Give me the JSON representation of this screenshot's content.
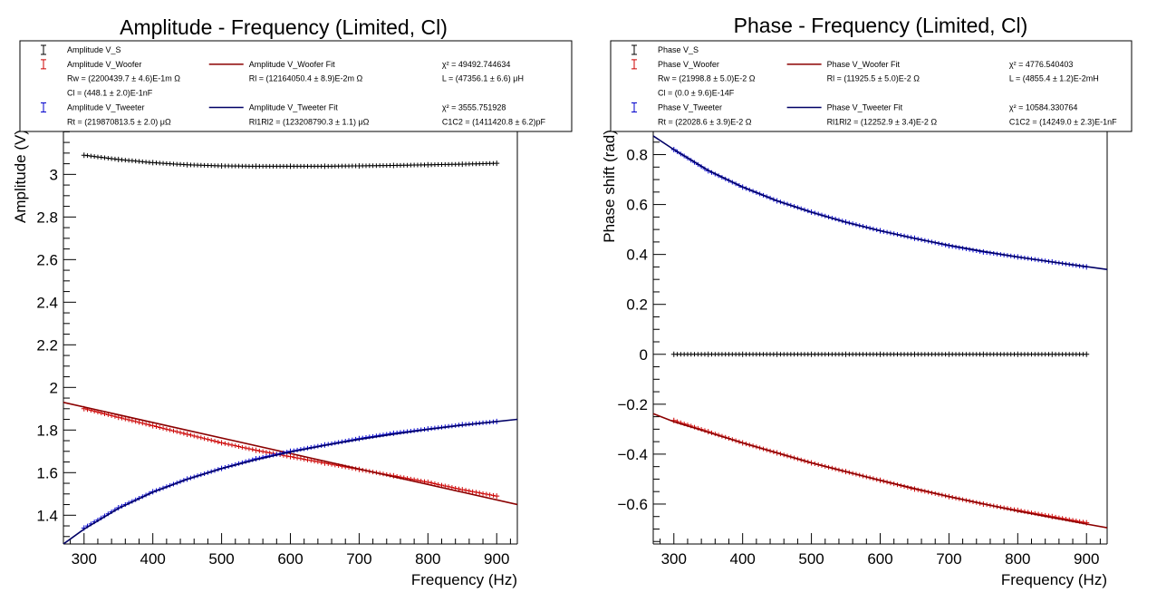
{
  "chart_data": [
    {
      "type": "scatter",
      "title": "Amplitude - Frequency (Limited, Cl)",
      "xlabel": "Frequency (Hz)",
      "ylabel": "Amplitude (V)",
      "xlim": [
        270,
        930
      ],
      "ylim": [
        1.265,
        3.21
      ],
      "xticks": [
        300,
        400,
        500,
        600,
        700,
        800,
        900
      ],
      "yticks": [
        1.4,
        1.6,
        1.8,
        2,
        2.2,
        2.4,
        2.6,
        2.8,
        3
      ],
      "ytick_labels": [
        "1.4",
        "1.6",
        "1.8",
        "2",
        "2.2",
        "2.4",
        "2.6",
        "2.8",
        "3"
      ],
      "xtick_labels": [
        "300",
        "400",
        "500",
        "600",
        "700",
        "800",
        "900"
      ],
      "series": [
        {
          "name": "Amplitude V_S",
          "color": "#000000",
          "kind": "points",
          "x": [
            300,
            350,
            400,
            450,
            500,
            550,
            600,
            650,
            700,
            750,
            800,
            850,
            900
          ],
          "y": [
            3.09,
            3.07,
            3.055,
            3.045,
            3.04,
            3.038,
            3.038,
            3.038,
            3.04,
            3.042,
            3.045,
            3.048,
            3.052
          ]
        },
        {
          "name": "Amplitude V_Woofer",
          "color": "#cc0000",
          "kind": "points",
          "x": [
            300,
            350,
            400,
            450,
            500,
            550,
            600,
            650,
            700,
            750,
            800,
            850,
            900
          ],
          "y": [
            1.9,
            1.86,
            1.82,
            1.78,
            1.74,
            1.705,
            1.675,
            1.645,
            1.615,
            1.585,
            1.555,
            1.52,
            1.49
          ]
        },
        {
          "name": "Amplitude V_Woofer Fit",
          "color": "#8b0000",
          "kind": "line",
          "x": [
            270,
            930
          ],
          "y": [
            1.93,
            1.45
          ]
        },
        {
          "name": "Amplitude V_Tweeter",
          "color": "#0000cc",
          "kind": "points",
          "x": [
            300,
            350,
            400,
            450,
            500,
            550,
            600,
            650,
            700,
            750,
            800,
            850,
            900
          ],
          "y": [
            1.34,
            1.435,
            1.51,
            1.57,
            1.62,
            1.665,
            1.7,
            1.73,
            1.76,
            1.785,
            1.805,
            1.825,
            1.84
          ]
        },
        {
          "name": "Amplitude V_Tweeter Fit",
          "color": "#000066",
          "kind": "line",
          "x": [
            270,
            300,
            350,
            400,
            450,
            500,
            550,
            600,
            650,
            700,
            750,
            800,
            850,
            900,
            930
          ],
          "y": [
            1.265,
            1.335,
            1.432,
            1.508,
            1.569,
            1.619,
            1.661,
            1.697,
            1.728,
            1.756,
            1.781,
            1.803,
            1.823,
            1.84,
            1.85
          ]
        }
      ],
      "legend": {
        "placement": "top",
        "rows": [
          [
            {
              "marker": "errbar",
              "color": "#000000",
              "text": "Amplitude V_S"
            }
          ],
          [
            {
              "marker": "errbar",
              "color": "#cc0000",
              "text": "Amplitude V_Woofer"
            },
            {
              "marker": "line",
              "color": "#8b0000",
              "text": "Amplitude V_Woofer Fit"
            },
            {
              "marker": "none",
              "text": "χ² = 49492.744634"
            }
          ],
          [
            {
              "marker": "none",
              "text": "Rw = (2200439.7     ± 4.6)E-1m  Ω"
            },
            {
              "marker": "none",
              "text": "Rl = (12164050.4     ± 8.9)E-2m  Ω"
            },
            {
              "marker": "none",
              "text": "L = (47356.1     ± 6.6) μH"
            }
          ],
          [
            {
              "marker": "none",
              "text": "Cl = (448.1     ± 2.0)E-1nF"
            }
          ],
          [
            {
              "marker": "errbar",
              "color": "#0000cc",
              "text": "Amplitude V_Tweeter"
            },
            {
              "marker": "line",
              "color": "#000066",
              "text": "Amplitude V_Tweeter Fit"
            },
            {
              "marker": "none",
              "text": "χ² = 3555.751928"
            }
          ],
          [
            {
              "marker": "none",
              "text": "Rt = (219870813.5     ± 2.0) μΩ"
            },
            {
              "marker": "none",
              "text": "Rl1Rl2 = (123208790.3     ± 1.1) μΩ"
            },
            {
              "marker": "none",
              "text": "C1C2 = (1411420.8     ± 6.2)pF"
            }
          ]
        ]
      }
    },
    {
      "type": "scatter",
      "title": "Phase - Frequency (Limited, Cl)",
      "xlabel": "Frequency (Hz)",
      "ylabel": "Phase shift (rad)",
      "xlim": [
        270,
        930
      ],
      "ylim": [
        -0.76,
        0.9
      ],
      "xticks": [
        300,
        400,
        500,
        600,
        700,
        800,
        900
      ],
      "yticks": [
        -0.6,
        -0.4,
        -0.2,
        0,
        0.2,
        0.4,
        0.6,
        0.8
      ],
      "ytick_labels": [
        "−0.6",
        "−0.4",
        "−0.2",
        "0",
        "0.2",
        "0.4",
        "0.6",
        "0.8"
      ],
      "xtick_labels": [
        "300",
        "400",
        "500",
        "600",
        "700",
        "800",
        "900"
      ],
      "series": [
        {
          "name": "Phase V_S",
          "color": "#000000",
          "kind": "points",
          "x": [
            300,
            350,
            400,
            450,
            500,
            550,
            600,
            650,
            700,
            750,
            800,
            850,
            900
          ],
          "y": [
            0,
            0,
            0,
            0,
            0,
            0,
            0,
            0,
            0,
            0,
            0,
            0,
            0
          ]
        },
        {
          "name": "Phase V_Woofer",
          "color": "#cc0000",
          "kind": "points",
          "x": [
            300,
            350,
            400,
            450,
            500,
            550,
            600,
            650,
            700,
            750,
            800,
            850,
            900
          ],
          "y": [
            -0.265,
            -0.31,
            -0.355,
            -0.395,
            -0.435,
            -0.47,
            -0.505,
            -0.54,
            -0.57,
            -0.6,
            -0.625,
            -0.65,
            -0.675
          ]
        },
        {
          "name": "Phase V_Woofer Fit",
          "color": "#8b0000",
          "kind": "line",
          "x": [
            270,
            300,
            400,
            500,
            600,
            700,
            800,
            900,
            930
          ],
          "y": [
            -0.238,
            -0.27,
            -0.355,
            -0.435,
            -0.505,
            -0.57,
            -0.628,
            -0.68,
            -0.695
          ]
        },
        {
          "name": "Phase V_Tweeter",
          "color": "#0000cc",
          "kind": "points",
          "x": [
            300,
            350,
            400,
            450,
            500,
            550,
            600,
            650,
            700,
            750,
            800,
            850,
            900
          ],
          "y": [
            0.82,
            0.735,
            0.67,
            0.615,
            0.57,
            0.53,
            0.495,
            0.465,
            0.435,
            0.41,
            0.39,
            0.37,
            0.35
          ]
        },
        {
          "name": "Phase V_Tweeter Fit",
          "color": "#000066",
          "kind": "line",
          "x": [
            270,
            300,
            350,
            400,
            450,
            500,
            550,
            600,
            650,
            700,
            750,
            800,
            850,
            900,
            930
          ],
          "y": [
            0.875,
            0.82,
            0.737,
            0.67,
            0.615,
            0.569,
            0.529,
            0.495,
            0.464,
            0.437,
            0.412,
            0.39,
            0.37,
            0.351,
            0.34
          ]
        }
      ],
      "legend": {
        "placement": "top",
        "rows": [
          [
            {
              "marker": "errbar",
              "color": "#000000",
              "text": "Phase V_S"
            }
          ],
          [
            {
              "marker": "errbar",
              "color": "#cc0000",
              "text": "Phase V_Woofer"
            },
            {
              "marker": "line",
              "color": "#8b0000",
              "text": "Phase V_Woofer Fit"
            },
            {
              "marker": "none",
              "text": "χ² = 4776.540403"
            }
          ],
          [
            {
              "marker": "none",
              "text": "Rw = (21998.8     ± 5.0)E-2  Ω"
            },
            {
              "marker": "none",
              "text": "Rl = (11925.5     ± 5.0)E-2  Ω"
            },
            {
              "marker": "none",
              "text": "L = (4855.4     ± 1.2)E-2mH"
            }
          ],
          [
            {
              "marker": "none",
              "text": "Cl = (0.0     ± 9.6)E-14F"
            }
          ],
          [
            {
              "marker": "errbar",
              "color": "#0000cc",
              "text": "Phase V_Tweeter"
            },
            {
              "marker": "line",
              "color": "#000066",
              "text": "Phase V_Tweeter Fit"
            },
            {
              "marker": "none",
              "text": "χ² = 10584.330764"
            }
          ],
          [
            {
              "marker": "none",
              "text": "Rt = (22028.6     ± 3.9)E-2  Ω"
            },
            {
              "marker": "none",
              "text": "Rl1Rl2 = (12252.9     ± 3.4)E-2  Ω"
            },
            {
              "marker": "none",
              "text": "C1C2 = (14249.0     ± 2.3)E-1nF"
            }
          ]
        ]
      }
    }
  ]
}
